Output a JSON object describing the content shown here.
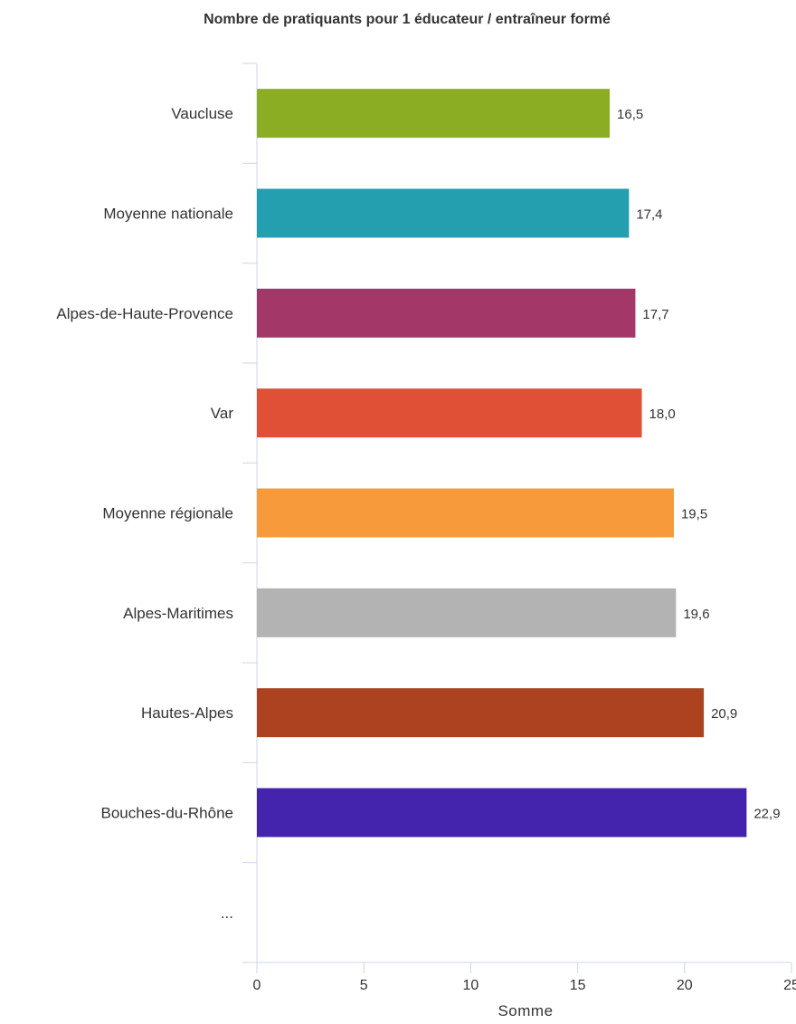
{
  "chart_data": {
    "type": "bar",
    "orientation": "horizontal",
    "title": "Nombre de pratiquants pour 1 éducateur / entraîneur formé",
    "xlabel": "Somme",
    "ylabel": "",
    "xlim": [
      0,
      25
    ],
    "ticks": [
      {
        "value": 0,
        "label": "0"
      },
      {
        "value": 5,
        "label": "5"
      },
      {
        "value": 10,
        "label": "10"
      },
      {
        "value": 15,
        "label": "15"
      },
      {
        "value": 20,
        "label": "20"
      },
      {
        "value": 25,
        "label": "25"
      }
    ],
    "grid": false,
    "categories": [
      "Vaucluse",
      "Moyenne nationale",
      "Alpes-de-Haute-Provence",
      "Var",
      "Moyenne régionale",
      "Alpes-Maritimes",
      "Hautes-Alpes",
      "Bouches-du-Rhône",
      "..."
    ],
    "values": [
      16.5,
      17.4,
      17.7,
      18.0,
      19.5,
      19.6,
      20.9,
      22.9,
      null
    ],
    "value_labels": [
      "16,5",
      "17,4",
      "17,7",
      "18,0",
      "19,5",
      "19,6",
      "20,9",
      "22,9",
      ""
    ],
    "colors": [
      "#8aad24",
      "#239faf",
      "#a33868",
      "#df5036",
      "#f79a3b",
      "#b3b3b3",
      "#ad4220",
      "#4423ad",
      ""
    ]
  }
}
